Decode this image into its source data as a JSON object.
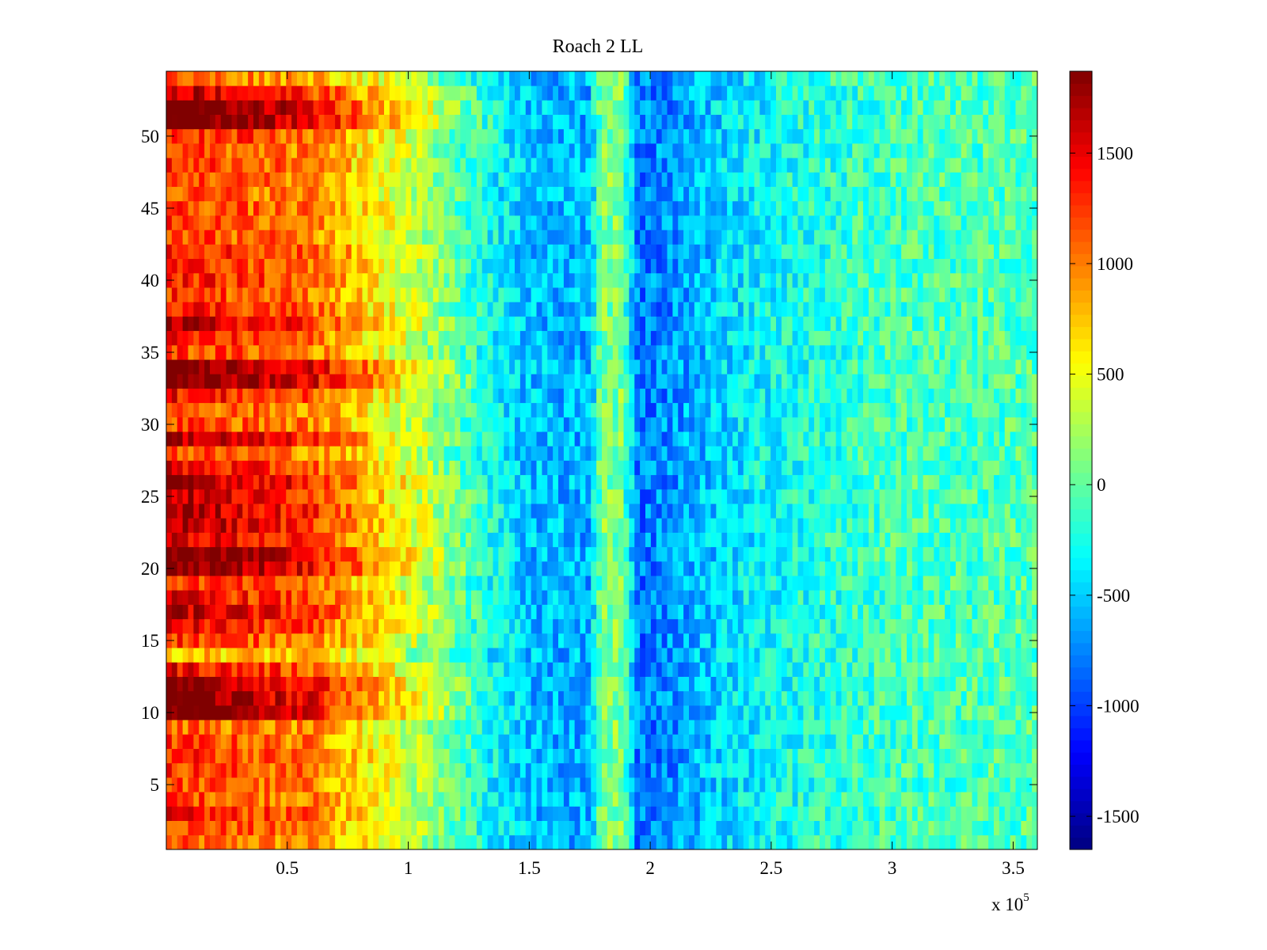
{
  "chart_data": {
    "type": "heatmap",
    "title": "Roach 2 LL",
    "xlabel": "",
    "ylabel": "",
    "x_multiplier_label": "x 10",
    "x_multiplier_exponent": "5",
    "xlim": [
      0,
      360000
    ],
    "ylim": [
      0.5,
      54.5
    ],
    "x_ticks": [
      50000,
      100000,
      150000,
      200000,
      250000,
      300000,
      350000
    ],
    "x_tick_labels": [
      "0.5",
      "1",
      "1.5",
      "2",
      "2.5",
      "3",
      "3.5"
    ],
    "y_ticks": [
      5,
      10,
      15,
      20,
      25,
      30,
      35,
      40,
      45,
      50
    ],
    "y_tick_labels": [
      "5",
      "10",
      "15",
      "20",
      "25",
      "30",
      "35",
      "40",
      "45",
      "50"
    ],
    "rows": 54,
    "colormap": "jet",
    "clim": [
      -1650,
      1870
    ],
    "colorbar_ticks": [
      1500,
      1000,
      500,
      0,
      -500,
      -1000,
      -1500
    ],
    "colorbar_tick_labels": [
      "1500",
      "1000",
      "500",
      "0",
      "-500",
      "-1000",
      "-1500"
    ],
    "x_profile_breakpoints": [
      0,
      60000,
      100000,
      130000,
      150000,
      175000,
      180000,
      188000,
      195000,
      210000,
      230000,
      260000,
      300000,
      360000
    ],
    "x_profile_values": [
      1100,
      900,
      300,
      -250,
      -550,
      -600,
      100,
      100,
      -800,
      -700,
      -450,
      -250,
      -100,
      -50
    ],
    "row_offsets": [
      0,
      150,
      300,
      150,
      100,
      200,
      250,
      150,
      0,
      950,
      900,
      850,
      400,
      -300,
      200,
      400,
      600,
      400,
      200,
      950,
      950,
      500,
      650,
      700,
      600,
      750,
      400,
      100,
      650,
      150,
      100,
      350,
      1000,
      1000,
      150,
      250,
      600,
      350,
      200,
      300,
      250,
      350,
      150,
      200,
      150,
      100,
      150,
      200,
      100,
      300,
      1000,
      1050,
      600,
      0
    ],
    "noise_amplitude": 300
  }
}
